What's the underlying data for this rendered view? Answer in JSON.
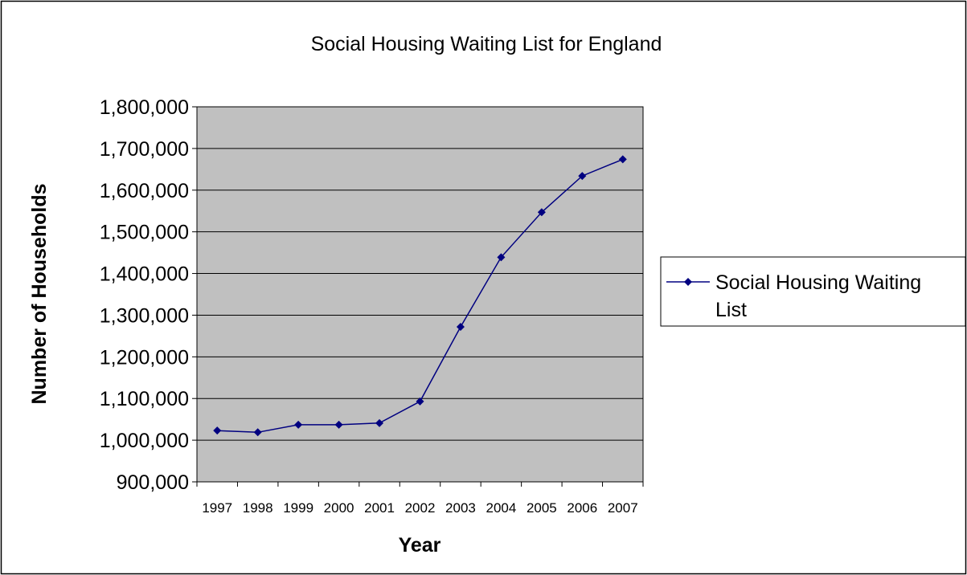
{
  "chart_data": {
    "type": "line",
    "title": "Social Housing Waiting List for England",
    "xlabel": "Year",
    "ylabel": "Number of Households",
    "categories": [
      "1997",
      "1998",
      "1999",
      "2000",
      "2001",
      "2002",
      "2003",
      "2004",
      "2005",
      "2006",
      "2007"
    ],
    "series": [
      {
        "name": "Social Housing Waiting List",
        "values": [
          1023000,
          1019000,
          1037000,
          1037000,
          1041000,
          1093000,
          1272000,
          1439000,
          1547000,
          1634000,
          1674000
        ]
      }
    ],
    "ylim": [
      900000,
      1800000
    ],
    "yticks": [
      "900,000",
      "1,000,000",
      "1,100,000",
      "1,200,000",
      "1,300,000",
      "1,400,000",
      "1,500,000",
      "1,600,000",
      "1,700,000",
      "1,800,000"
    ],
    "legend": {
      "entries": [
        "Social Housing Waiting",
        "List"
      ],
      "placement": "right"
    },
    "grid": true,
    "colors": {
      "series": "#000080",
      "plot_background": "#c0c0c0",
      "gridline": "#000000",
      "frame": "#000000"
    }
  }
}
